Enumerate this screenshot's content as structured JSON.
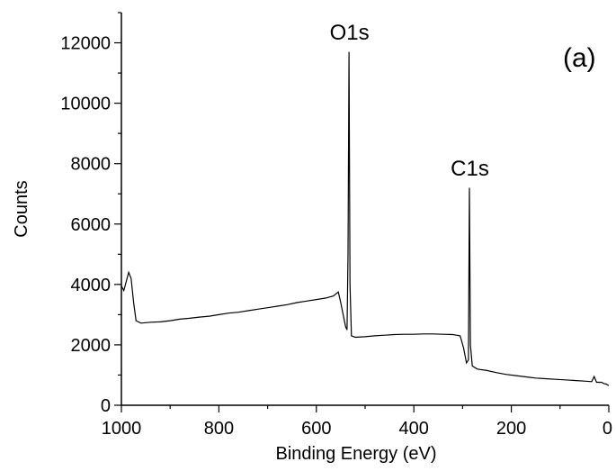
{
  "chart_data": {
    "type": "line",
    "title": "",
    "panel_label": "(a)",
    "xlabel": "Binding Energy (eV)",
    "ylabel": "Counts",
    "xlim": [
      1000,
      0
    ],
    "ylim": [
      0,
      13000
    ],
    "x_reversed": true,
    "grid": false,
    "legend": "none",
    "x_ticks": [
      1000,
      800,
      600,
      400,
      200,
      0
    ],
    "x_tick_labels": [
      "1000",
      "800",
      "600",
      "400",
      "200",
      "0"
    ],
    "y_ticks": [
      0,
      2000,
      4000,
      6000,
      8000,
      10000,
      12000
    ],
    "y_tick_labels": [
      "0",
      "2000",
      "4000",
      "6000",
      "8000",
      "10000",
      "12000"
    ],
    "annotations": [
      {
        "text": "O1s",
        "x": 532,
        "y": 12100
      },
      {
        "text": "C1s",
        "x": 285,
        "y": 7600
      }
    ],
    "series": [
      {
        "color": "#000000",
        "points": [
          [
            1000,
            3950
          ],
          [
            995,
            3800
          ],
          [
            990,
            4100
          ],
          [
            985,
            4400
          ],
          [
            980,
            4200
          ],
          [
            975,
            3400
          ],
          [
            970,
            2800
          ],
          [
            960,
            2720
          ],
          [
            940,
            2750
          ],
          [
            920,
            2760
          ],
          [
            900,
            2800
          ],
          [
            880,
            2850
          ],
          [
            860,
            2880
          ],
          [
            840,
            2920
          ],
          [
            820,
            2950
          ],
          [
            800,
            3000
          ],
          [
            780,
            3050
          ],
          [
            760,
            3080
          ],
          [
            740,
            3130
          ],
          [
            720,
            3180
          ],
          [
            700,
            3230
          ],
          [
            680,
            3280
          ],
          [
            660,
            3330
          ],
          [
            640,
            3400
          ],
          [
            620,
            3450
          ],
          [
            600,
            3500
          ],
          [
            580,
            3550
          ],
          [
            565,
            3620
          ],
          [
            555,
            3750
          ],
          [
            550,
            3400
          ],
          [
            545,
            3000
          ],
          [
            540,
            2600
          ],
          [
            537,
            2500
          ],
          [
            535,
            5000
          ],
          [
            533,
            11700
          ],
          [
            531,
            4000
          ],
          [
            528,
            2300
          ],
          [
            520,
            2250
          ],
          [
            500,
            2270
          ],
          [
            480,
            2300
          ],
          [
            460,
            2320
          ],
          [
            440,
            2340
          ],
          [
            420,
            2350
          ],
          [
            400,
            2350
          ],
          [
            380,
            2360
          ],
          [
            360,
            2360
          ],
          [
            340,
            2350
          ],
          [
            320,
            2340
          ],
          [
            305,
            2300
          ],
          [
            298,
            1900
          ],
          [
            292,
            1400
          ],
          [
            288,
            1500
          ],
          [
            286,
            7200
          ],
          [
            284,
            2000
          ],
          [
            280,
            1300
          ],
          [
            270,
            1200
          ],
          [
            250,
            1150
          ],
          [
            230,
            1080
          ],
          [
            210,
            1020
          ],
          [
            190,
            980
          ],
          [
            170,
            940
          ],
          [
            150,
            900
          ],
          [
            130,
            880
          ],
          [
            110,
            860
          ],
          [
            90,
            840
          ],
          [
            70,
            820
          ],
          [
            50,
            800
          ],
          [
            35,
            780
          ],
          [
            30,
            950
          ],
          [
            25,
            760
          ],
          [
            15,
            760
          ],
          [
            10,
            720
          ],
          [
            5,
            700
          ],
          [
            0,
            650
          ]
        ]
      }
    ]
  }
}
